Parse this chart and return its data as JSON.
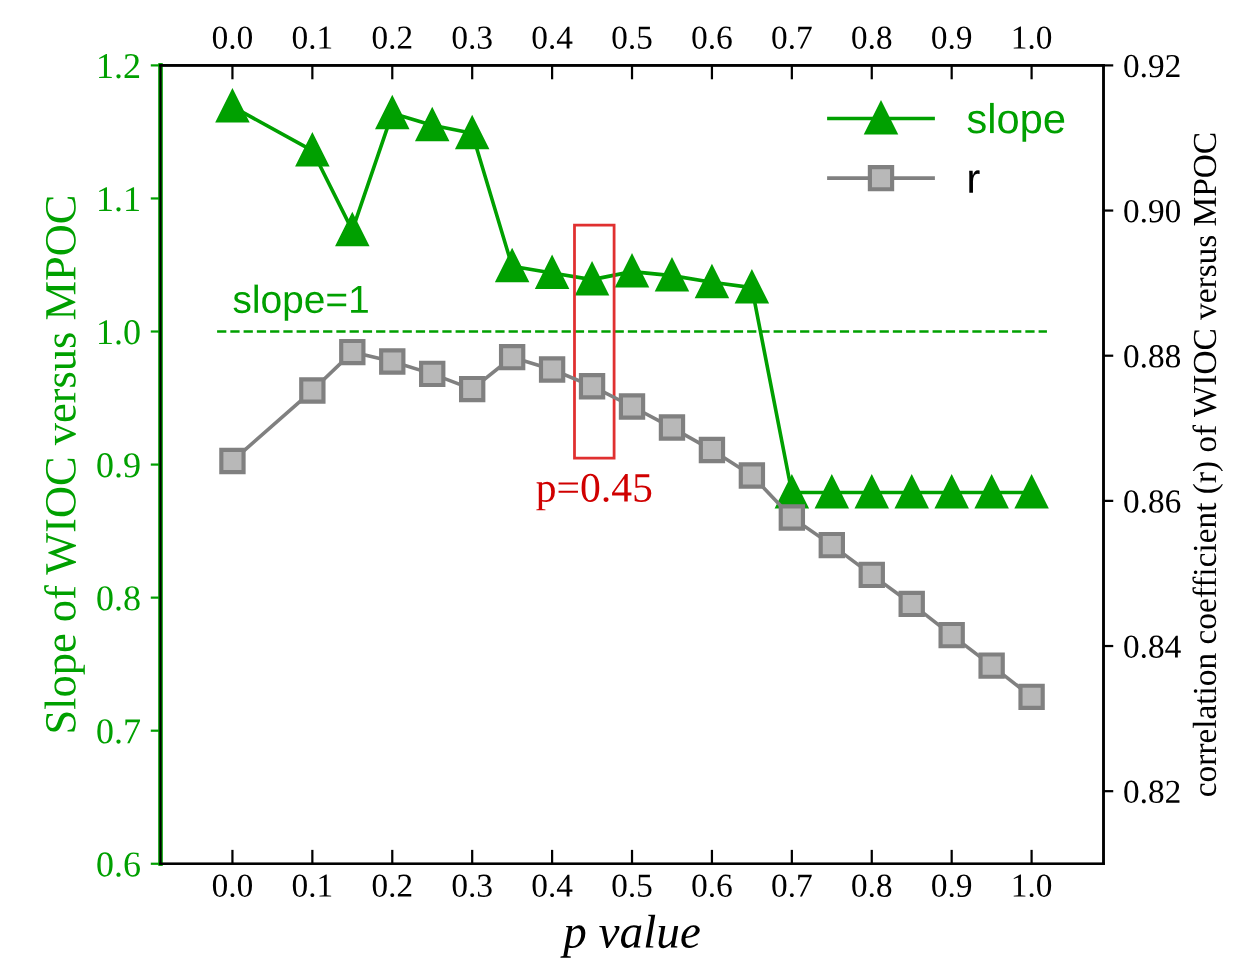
{
  "chart_data": {
    "type": "line",
    "xlabel": "p value",
    "ylabel": "Slope of WIOC versus MPOC",
    "y2label": "correlation coefficient (r) of WIOC versus MPOC",
    "x": [
      0.0,
      0.1,
      0.15,
      0.2,
      0.25,
      0.3,
      0.35,
      0.4,
      0.45,
      0.5,
      0.55,
      0.6,
      0.65,
      0.7,
      0.75,
      0.8,
      0.85,
      0.9,
      0.95,
      1.0
    ],
    "series": [
      {
        "name": "slope",
        "color": "#00a000",
        "marker": "triangle",
        "axis": "y",
        "values": [
          1.169,
          1.136,
          1.076,
          1.164,
          1.155,
          1.149,
          1.049,
          1.044,
          1.039,
          1.045,
          1.042,
          1.037,
          1.033,
          0.879,
          0.879,
          0.879,
          0.879,
          0.879,
          0.879,
          0.879
        ]
      },
      {
        "name": "r",
        "color": "#808080",
        "marker": "square",
        "axis": "y2",
        "values": [
          0.8655,
          0.8752,
          0.8805,
          0.8792,
          0.8775,
          0.8754,
          0.8798,
          0.8781,
          0.8758,
          0.873,
          0.8701,
          0.867,
          0.8635,
          0.8577,
          0.8539,
          0.8498,
          0.8458,
          0.8415,
          0.8373,
          0.833
        ]
      }
    ],
    "xlim": [
      -0.09,
      1.09
    ],
    "xticks": [
      {
        "value": 0.0,
        "label": "0.0"
      },
      0.1,
      0.2,
      0.3,
      0.4,
      0.5,
      0.6,
      0.7,
      0.8,
      0.9,
      {
        "value": 1.0,
        "label": "1.0"
      }
    ],
    "x2lim": [
      -0.09,
      1.09
    ],
    "x2ticks": [
      {
        "value": 0.0,
        "label": "0.0"
      },
      0.1,
      0.2,
      0.3,
      0.4,
      0.5,
      0.6,
      0.7,
      0.8,
      0.9,
      {
        "value": 1.0,
        "label": "1.0"
      }
    ],
    "ylim": [
      0.6,
      1.2
    ],
    "yticks": [
      0.6,
      0.7,
      0.8,
      0.9,
      {
        "value": 1.0,
        "label": "1.0"
      },
      1.1,
      1.2
    ],
    "y2lim": [
      0.81,
      0.92
    ],
    "y2ticks": [
      0.82,
      0.84,
      0.86,
      0.88,
      {
        "value": 0.9,
        "label": "0.90"
      },
      0.92
    ],
    "ref_lines": [
      {
        "axis": "y",
        "value": 1.0,
        "label": "slope=1",
        "color": "#00a000",
        "line_style": "dashed"
      }
    ],
    "annotations": [
      "p=0.45"
    ],
    "legend": "top right",
    "grid": false
  }
}
